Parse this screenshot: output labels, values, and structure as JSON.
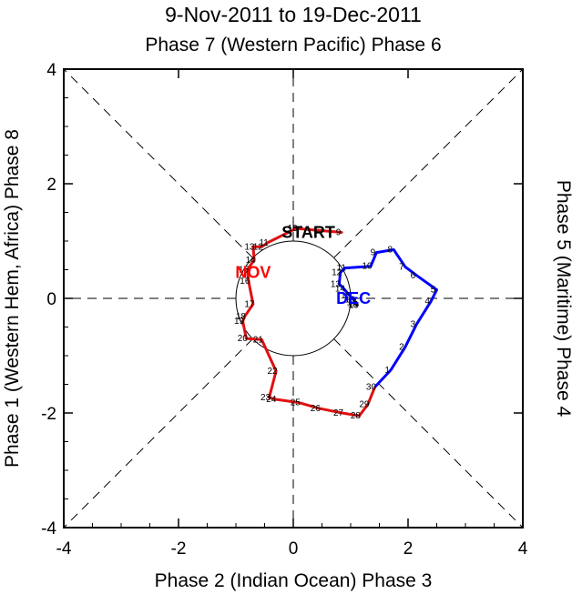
{
  "chart_data": {
    "type": "line",
    "title": "9-Nov-2011 to 19-Dec-2011",
    "top_label": "Phase 7 (Western Pacific) Phase 6",
    "bottom_label": "Phase 2 (Indian Ocean) Phase 3",
    "left_label": "Phase 1 (Western Hem, Africa) Phase 8",
    "right_label": "Phase 5 (Maritime) Phase 4",
    "xlim": [
      -4,
      4
    ],
    "ylim": [
      -4,
      4
    ],
    "x_ticks": [
      "-4",
      "-2",
      "0",
      "2",
      "4"
    ],
    "y_ticks": [
      "-4",
      "-2",
      "0",
      "2",
      "4"
    ],
    "start_label": "START",
    "month_labels": [
      {
        "text": "NOV",
        "x": -0.7,
        "y": 0.45,
        "color": "#ff0000"
      },
      {
        "text": "DEC",
        "x": 1.05,
        "y": 0.0,
        "color": "#0000ff"
      }
    ],
    "series": [
      {
        "name": "NOV",
        "color": "#e01010",
        "points": [
          {
            "label": "9",
            "x": 0.85,
            "y": 1.15
          },
          {
            "label": "10",
            "x": 0.05,
            "y": 1.22
          },
          {
            "label": "11",
            "x": -0.45,
            "y": 0.97
          },
          {
            "label": "12",
            "x": -0.55,
            "y": 0.9
          },
          {
            "label": "13",
            "x": -0.7,
            "y": 0.9
          },
          {
            "label": "14",
            "x": -0.68,
            "y": 0.67
          },
          {
            "label": "15",
            "x": -0.8,
            "y": 0.5
          },
          {
            "label": "16",
            "x": -0.78,
            "y": 0.3
          },
          {
            "label": "17",
            "x": -0.7,
            "y": -0.1
          },
          {
            "label": "18",
            "x": -0.85,
            "y": -0.32
          },
          {
            "label": "19",
            "x": -0.88,
            "y": -0.4
          },
          {
            "label": "20",
            "x": -0.82,
            "y": -0.7
          },
          {
            "label": "21",
            "x": -0.55,
            "y": -0.72
          },
          {
            "label": "22",
            "x": -0.3,
            "y": -1.27
          },
          {
            "label": "23",
            "x": -0.42,
            "y": -1.73
          },
          {
            "label": "24",
            "x": -0.32,
            "y": -1.76
          },
          {
            "label": "25",
            "x": 0.1,
            "y": -1.82
          },
          {
            "label": "26",
            "x": 0.45,
            "y": -1.92
          },
          {
            "label": "27",
            "x": 0.85,
            "y": -2.0
          },
          {
            "label": "28",
            "x": 1.15,
            "y": -2.05
          },
          {
            "label": "29",
            "x": 1.3,
            "y": -1.85
          },
          {
            "label": "30",
            "x": 1.42,
            "y": -1.55
          }
        ]
      },
      {
        "name": "DEC",
        "color": "#0000ff",
        "points": [
          {
            "label": "1",
            "x": 1.7,
            "y": -1.25
          },
          {
            "label": "2",
            "x": 1.95,
            "y": -0.85
          },
          {
            "label": "3",
            "x": 2.15,
            "y": -0.45
          },
          {
            "label": "4",
            "x": 2.4,
            "y": -0.05
          },
          {
            "label": "5",
            "x": 2.5,
            "y": 0.15
          },
          {
            "label": "6",
            "x": 2.15,
            "y": 0.4
          },
          {
            "label": "7",
            "x": 1.95,
            "y": 0.55
          },
          {
            "label": "8",
            "x": 1.75,
            "y": 0.85
          },
          {
            "label": "9",
            "x": 1.45,
            "y": 0.8
          },
          {
            "label": "10",
            "x": 1.35,
            "y": 0.56
          },
          {
            "label": "11",
            "x": 0.9,
            "y": 0.53
          },
          {
            "label": "12",
            "x": 0.82,
            "y": 0.45
          },
          {
            "label": "13",
            "x": 0.8,
            "y": 0.25
          },
          {
            "label": "14",
            "x": 0.88,
            "y": 0.17
          },
          {
            "label": "15",
            "x": 0.98,
            "y": 0.05
          },
          {
            "label": "16",
            "x": 1.05,
            "y": -0.02
          },
          {
            "label": "17",
            "x": 1.08,
            "y": -0.07
          },
          {
            "label": "18",
            "x": 1.1,
            "y": -0.1
          },
          {
            "label": "19",
            "x": 1.12,
            "y": -0.12
          }
        ]
      }
    ]
  }
}
